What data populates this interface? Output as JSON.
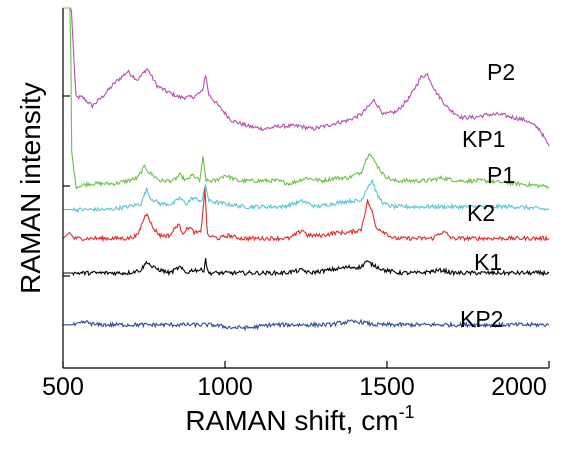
{
  "chart_data": {
    "type": "line",
    "title": "",
    "xlabel": "RAMAN shift, cm",
    "xlabel_superscript": "-1",
    "ylabel": "RAMAN intensity",
    "xlim": [
      500,
      2000
    ],
    "x_ticks": [
      "500",
      "1000",
      "1500",
      "2000"
    ],
    "grid": false,
    "legend": "inline labels at right end of each trace",
    "series": [
      {
        "name": "P2",
        "color": "#b64fb1",
        "points": [
          [
            500,
            1.35
          ],
          [
            515,
            1.9
          ],
          [
            523,
            1.05
          ],
          [
            540,
            0.69
          ],
          [
            560,
            0.69
          ],
          [
            590,
            0.66
          ],
          [
            620,
            0.69
          ],
          [
            660,
            0.74
          ],
          [
            700,
            0.78
          ],
          [
            730,
            0.75
          ],
          [
            760,
            0.79
          ],
          [
            790,
            0.73
          ],
          [
            820,
            0.71
          ],
          [
            860,
            0.69
          ],
          [
            900,
            0.69
          ],
          [
            930,
            0.71
          ],
          [
            940,
            0.77
          ],
          [
            950,
            0.7
          ],
          [
            980,
            0.66
          ],
          [
            1020,
            0.61
          ],
          [
            1070,
            0.59
          ],
          [
            1120,
            0.58
          ],
          [
            1170,
            0.59
          ],
          [
            1230,
            0.59
          ],
          [
            1270,
            0.58
          ],
          [
            1310,
            0.59
          ],
          [
            1340,
            0.6
          ],
          [
            1380,
            0.61
          ],
          [
            1420,
            0.63
          ],
          [
            1445,
            0.66
          ],
          [
            1460,
            0.68
          ],
          [
            1490,
            0.63
          ],
          [
            1530,
            0.64
          ],
          [
            1570,
            0.69
          ],
          [
            1605,
            0.76
          ],
          [
            1625,
            0.77
          ],
          [
            1650,
            0.71
          ],
          [
            1690,
            0.65
          ],
          [
            1730,
            0.62
          ],
          [
            1770,
            0.62
          ],
          [
            1810,
            0.63
          ],
          [
            1850,
            0.63
          ],
          [
            1890,
            0.62
          ],
          [
            1930,
            0.61
          ],
          [
            1970,
            0.58
          ],
          [
            2000,
            0.52
          ]
        ]
      },
      {
        "name": "KP1",
        "color": "#6cc04a",
        "points": [
          [
            500,
            1.35
          ],
          [
            515,
            1.9
          ],
          [
            521,
            1.2
          ],
          [
            527,
            0.5
          ],
          [
            540,
            0.38
          ],
          [
            580,
            0.39
          ],
          [
            620,
            0.39
          ],
          [
            660,
            0.39
          ],
          [
            700,
            0.4
          ],
          [
            730,
            0.41
          ],
          [
            752,
            0.45
          ],
          [
            765,
            0.43
          ],
          [
            800,
            0.4
          ],
          [
            840,
            0.4
          ],
          [
            860,
            0.42
          ],
          [
            880,
            0.4
          ],
          [
            900,
            0.42
          ],
          [
            922,
            0.4
          ],
          [
            932,
            0.48
          ],
          [
            942,
            0.4
          ],
          [
            970,
            0.4
          ],
          [
            1000,
            0.42
          ],
          [
            1040,
            0.4
          ],
          [
            1100,
            0.4
          ],
          [
            1160,
            0.4
          ],
          [
            1200,
            0.39
          ],
          [
            1250,
            0.41
          ],
          [
            1300,
            0.4
          ],
          [
            1340,
            0.41
          ],
          [
            1380,
            0.41
          ],
          [
            1420,
            0.43
          ],
          [
            1445,
            0.5
          ],
          [
            1460,
            0.47
          ],
          [
            1490,
            0.42
          ],
          [
            1520,
            0.4
          ],
          [
            1570,
            0.4
          ],
          [
            1620,
            0.4
          ],
          [
            1670,
            0.41
          ],
          [
            1720,
            0.4
          ],
          [
            1800,
            0.4
          ],
          [
            1900,
            0.39
          ],
          [
            2000,
            0.38
          ]
        ]
      },
      {
        "name": "P1",
        "color": "#5cc3d3",
        "points": [
          [
            500,
            0.3
          ],
          [
            540,
            0.3
          ],
          [
            590,
            0.3
          ],
          [
            640,
            0.3
          ],
          [
            700,
            0.31
          ],
          [
            740,
            0.32
          ],
          [
            758,
            0.37
          ],
          [
            770,
            0.34
          ],
          [
            800,
            0.32
          ],
          [
            840,
            0.32
          ],
          [
            860,
            0.34
          ],
          [
            880,
            0.32
          ],
          [
            900,
            0.34
          ],
          [
            930,
            0.33
          ],
          [
            940,
            0.39
          ],
          [
            950,
            0.33
          ],
          [
            1000,
            0.32
          ],
          [
            1060,
            0.31
          ],
          [
            1120,
            0.31
          ],
          [
            1180,
            0.31
          ],
          [
            1240,
            0.33
          ],
          [
            1280,
            0.31
          ],
          [
            1330,
            0.32
          ],
          [
            1380,
            0.33
          ],
          [
            1420,
            0.33
          ],
          [
            1440,
            0.38
          ],
          [
            1455,
            0.4
          ],
          [
            1470,
            0.35
          ],
          [
            1490,
            0.32
          ],
          [
            1520,
            0.31
          ],
          [
            1560,
            0.31
          ],
          [
            1600,
            0.31
          ],
          [
            1650,
            0.31
          ],
          [
            1700,
            0.31
          ],
          [
            1800,
            0.31
          ],
          [
            1900,
            0.31
          ],
          [
            2000,
            0.3
          ]
        ]
      },
      {
        "name": "K2",
        "color": "#e02b2b",
        "points": [
          [
            500,
            0.2
          ],
          [
            520,
            0.22
          ],
          [
            535,
            0.2
          ],
          [
            560,
            0.2
          ],
          [
            600,
            0.2
          ],
          [
            650,
            0.2
          ],
          [
            700,
            0.2
          ],
          [
            730,
            0.21
          ],
          [
            750,
            0.27
          ],
          [
            760,
            0.29
          ],
          [
            775,
            0.24
          ],
          [
            800,
            0.21
          ],
          [
            830,
            0.21
          ],
          [
            855,
            0.25
          ],
          [
            870,
            0.22
          ],
          [
            890,
            0.24
          ],
          [
            905,
            0.22
          ],
          [
            925,
            0.22
          ],
          [
            938,
            0.37
          ],
          [
            946,
            0.21
          ],
          [
            980,
            0.2
          ],
          [
            1010,
            0.21
          ],
          [
            1050,
            0.2
          ],
          [
            1100,
            0.2
          ],
          [
            1160,
            0.2
          ],
          [
            1200,
            0.2
          ],
          [
            1240,
            0.23
          ],
          [
            1255,
            0.21
          ],
          [
            1300,
            0.21
          ],
          [
            1340,
            0.22
          ],
          [
            1380,
            0.22
          ],
          [
            1420,
            0.23
          ],
          [
            1430,
            0.28
          ],
          [
            1440,
            0.33
          ],
          [
            1455,
            0.29
          ],
          [
            1465,
            0.24
          ],
          [
            1495,
            0.22
          ],
          [
            1520,
            0.2
          ],
          [
            1580,
            0.2
          ],
          [
            1640,
            0.2
          ],
          [
            1665,
            0.22
          ],
          [
            1680,
            0.22
          ],
          [
            1700,
            0.2
          ],
          [
            1800,
            0.2
          ],
          [
            1900,
            0.2
          ],
          [
            2000,
            0.2
          ]
        ]
      },
      {
        "name": "K1",
        "color": "#000000",
        "points": [
          [
            500,
            0.08
          ],
          [
            550,
            0.08
          ],
          [
            600,
            0.08
          ],
          [
            650,
            0.08
          ],
          [
            700,
            0.08
          ],
          [
            740,
            0.09
          ],
          [
            760,
            0.12
          ],
          [
            775,
            0.1
          ],
          [
            800,
            0.09
          ],
          [
            830,
            0.08
          ],
          [
            860,
            0.1
          ],
          [
            880,
            0.08
          ],
          [
            900,
            0.09
          ],
          [
            935,
            0.09
          ],
          [
            940,
            0.13
          ],
          [
            948,
            0.08
          ],
          [
            1000,
            0.08
          ],
          [
            1060,
            0.08
          ],
          [
            1120,
            0.08
          ],
          [
            1180,
            0.08
          ],
          [
            1240,
            0.09
          ],
          [
            1260,
            0.08
          ],
          [
            1320,
            0.09
          ],
          [
            1380,
            0.1
          ],
          [
            1420,
            0.1
          ],
          [
            1435,
            0.12
          ],
          [
            1455,
            0.11
          ],
          [
            1490,
            0.09
          ],
          [
            1540,
            0.08
          ],
          [
            1600,
            0.08
          ],
          [
            1670,
            0.09
          ],
          [
            1700,
            0.08
          ],
          [
            1800,
            0.08
          ],
          [
            1900,
            0.08
          ],
          [
            2000,
            0.08
          ]
        ]
      },
      {
        "name": "KP2",
        "color": "#2f4a9a",
        "points": [
          [
            500,
            -0.1
          ],
          [
            540,
            -0.1
          ],
          [
            570,
            -0.09
          ],
          [
            600,
            -0.1
          ],
          [
            650,
            -0.1
          ],
          [
            700,
            -0.1
          ],
          [
            760,
            -0.1
          ],
          [
            800,
            -0.1
          ],
          [
            850,
            -0.1
          ],
          [
            900,
            -0.1
          ],
          [
            960,
            -0.1
          ],
          [
            1020,
            -0.11
          ],
          [
            1080,
            -0.11
          ],
          [
            1140,
            -0.1
          ],
          [
            1200,
            -0.1
          ],
          [
            1260,
            -0.1
          ],
          [
            1320,
            -0.1
          ],
          [
            1380,
            -0.09
          ],
          [
            1420,
            -0.09
          ],
          [
            1460,
            -0.1
          ],
          [
            1520,
            -0.1
          ],
          [
            1580,
            -0.1
          ],
          [
            1640,
            -0.1
          ],
          [
            1700,
            -0.1
          ],
          [
            1760,
            -0.1
          ],
          [
            1820,
            -0.1
          ],
          [
            1880,
            -0.1
          ],
          [
            1940,
            -0.1
          ],
          [
            2000,
            -0.1
          ]
        ]
      }
    ]
  }
}
